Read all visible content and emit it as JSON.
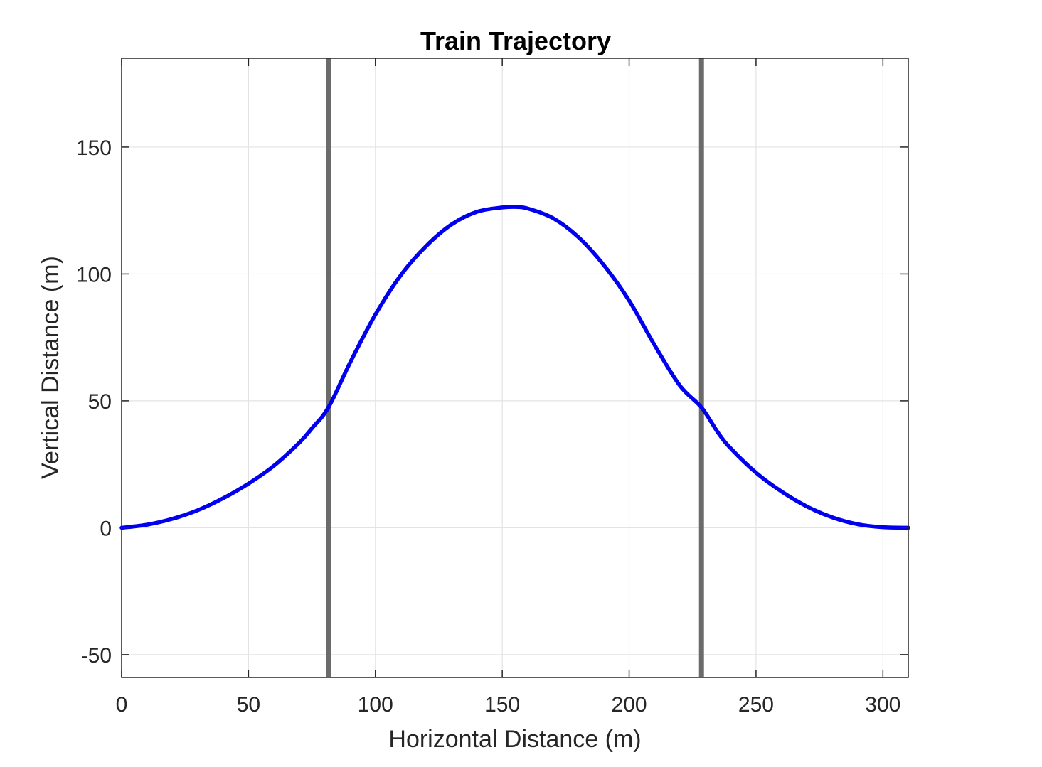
{
  "chart_data": {
    "type": "line",
    "title": "Train Trajectory",
    "xlabel": "Horizontal Distance (m)",
    "ylabel": "Vertical Distance (m)",
    "xlim": [
      0,
      310
    ],
    "ylim": [
      -59,
      185
    ],
    "xticks": [
      0,
      50,
      100,
      150,
      200,
      250,
      300
    ],
    "yticks": [
      -50,
      0,
      50,
      100,
      150
    ],
    "xtick_labels": [
      "0",
      "50",
      "100",
      "150",
      "200",
      "250",
      "300"
    ],
    "ytick_labels": [
      "-50",
      "0",
      "50",
      "100",
      "150"
    ],
    "grid": true,
    "legend": "none",
    "series": [
      {
        "color": "#0000ee",
        "x": [
          0,
          10,
          20,
          30,
          40,
          50,
          60,
          70,
          75,
          81.5,
          90,
          100,
          110,
          120,
          130,
          140,
          150,
          155,
          160,
          170,
          180,
          190,
          200,
          210,
          220,
          228.5,
          235,
          240,
          250,
          260,
          270,
          280,
          290,
          300,
          310
        ],
        "y": [
          0,
          1.2,
          3.5,
          6.9,
          11.6,
          17.4,
          24.4,
          33.5,
          39.2,
          47.4,
          65,
          84,
          99.5,
          111,
          119.5,
          124.5,
          126.2,
          126.4,
          125.8,
          122,
          114.5,
          103.5,
          89.5,
          72,
          56,
          47.4,
          37.5,
          31.3,
          21.7,
          14.3,
          8.4,
          4.1,
          1.4,
          0.2,
          0
        ]
      }
    ],
    "vertical_lines": [
      {
        "x": 81.5,
        "color": "#6b6b6b"
      },
      {
        "x": 228.5,
        "color": "#6b6b6b"
      }
    ],
    "colors": {
      "grid": "#e3e3e3",
      "axes": "#262626",
      "background": "#ffffff"
    }
  }
}
